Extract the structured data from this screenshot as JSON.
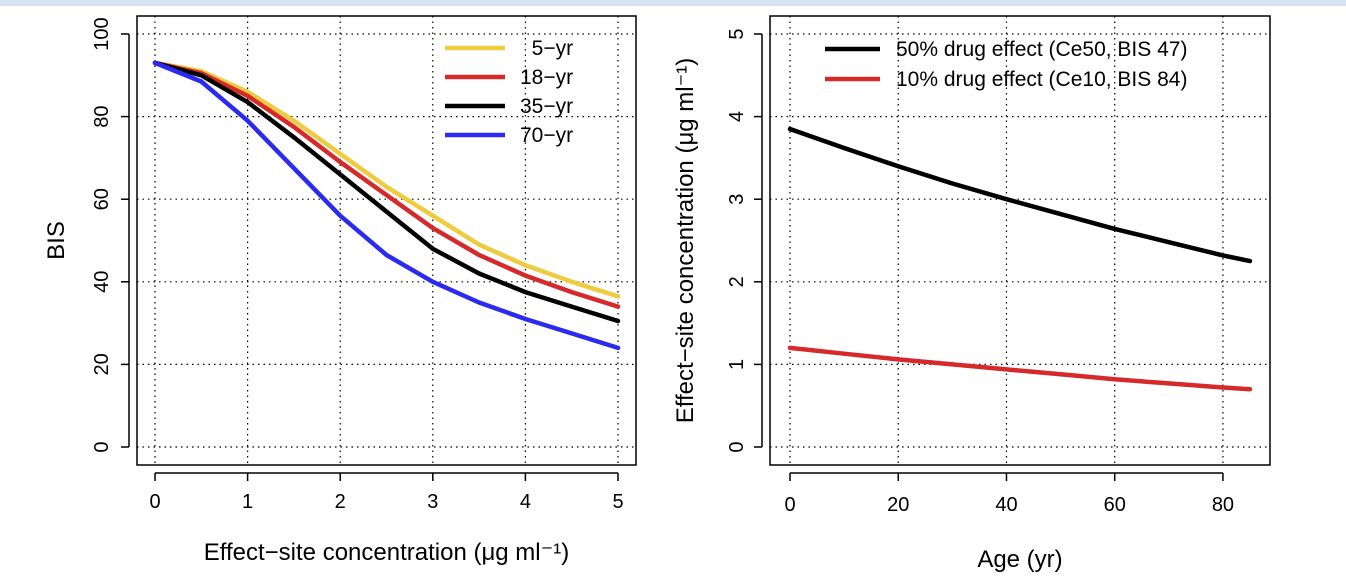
{
  "chart_data": [
    {
      "type": "line",
      "xlabel": "Effect−site concentration (μg ml⁻¹)",
      "ylabel": "BIS",
      "xlim": [
        0,
        5
      ],
      "ylim": [
        0,
        100
      ],
      "x_ticks": [
        "0",
        "1",
        "2",
        "3",
        "4",
        "5"
      ],
      "y_ticks": [
        "0",
        "20",
        "40",
        "60",
        "80",
        "100"
      ],
      "grid": true,
      "legend_position": "top-right",
      "series": [
        {
          "name": "  5−yr",
          "color": "#eecb3f",
          "x": [
            0,
            0.5,
            1,
            1.5,
            2,
            2.5,
            3,
            3.5,
            4,
            4.5,
            5
          ],
          "y": [
            93,
            91,
            86,
            79,
            71,
            63,
            56,
            49,
            44,
            40,
            36.5
          ]
        },
        {
          "name": "18−yr",
          "color": "#d62a2a",
          "x": [
            0,
            0.5,
            1,
            1.5,
            2,
            2.5,
            3,
            3.5,
            4,
            4.5,
            5
          ],
          "y": [
            93,
            90.5,
            85,
            77.5,
            69,
            61,
            53,
            46.5,
            41.5,
            37.5,
            34
          ]
        },
        {
          "name": "35−yr",
          "color": "#000000",
          "x": [
            0,
            0.5,
            1,
            1.5,
            2,
            2.5,
            3,
            3.5,
            4,
            4.5,
            5
          ],
          "y": [
            93,
            90,
            83.5,
            75,
            66,
            57,
            48,
            42,
            37.5,
            34,
            30.5
          ]
        },
        {
          "name": "70−yr",
          "color": "#2b2bf0",
          "x": [
            0,
            0.5,
            1,
            1.5,
            2,
            2.5,
            3,
            3.5,
            4,
            4.5,
            5
          ],
          "y": [
            93,
            88.5,
            79,
            67.5,
            56,
            46.5,
            40,
            35,
            31,
            27.5,
            24
          ]
        }
      ]
    },
    {
      "type": "line",
      "xlabel": "Age (yr)",
      "ylabel": "Effect−site concentration (μg ml⁻¹)",
      "xlim": [
        0,
        85
      ],
      "ylim": [
        0,
        5
      ],
      "x_ticks": [
        "0",
        "20",
        "40",
        "60",
        "80"
      ],
      "y_ticks": [
        "0",
        "1",
        "2",
        "3",
        "4",
        "5"
      ],
      "grid": true,
      "legend_position": "top-right",
      "series": [
        {
          "name": "50% drug effect (Ce50, BIS 47)",
          "color": "#000000",
          "x": [
            0,
            10,
            20,
            30,
            40,
            50,
            60,
            70,
            80,
            85
          ],
          "y": [
            3.85,
            3.62,
            3.4,
            3.19,
            3.0,
            2.82,
            2.64,
            2.48,
            2.32,
            2.25
          ]
        },
        {
          "name": "10% drug effect (Ce10, BIS 84)",
          "color": "#d62a2a",
          "x": [
            0,
            10,
            20,
            30,
            40,
            50,
            60,
            70,
            80,
            85
          ],
          "y": [
            1.2,
            1.13,
            1.06,
            1.0,
            0.94,
            0.88,
            0.82,
            0.77,
            0.72,
            0.7
          ]
        }
      ]
    }
  ]
}
